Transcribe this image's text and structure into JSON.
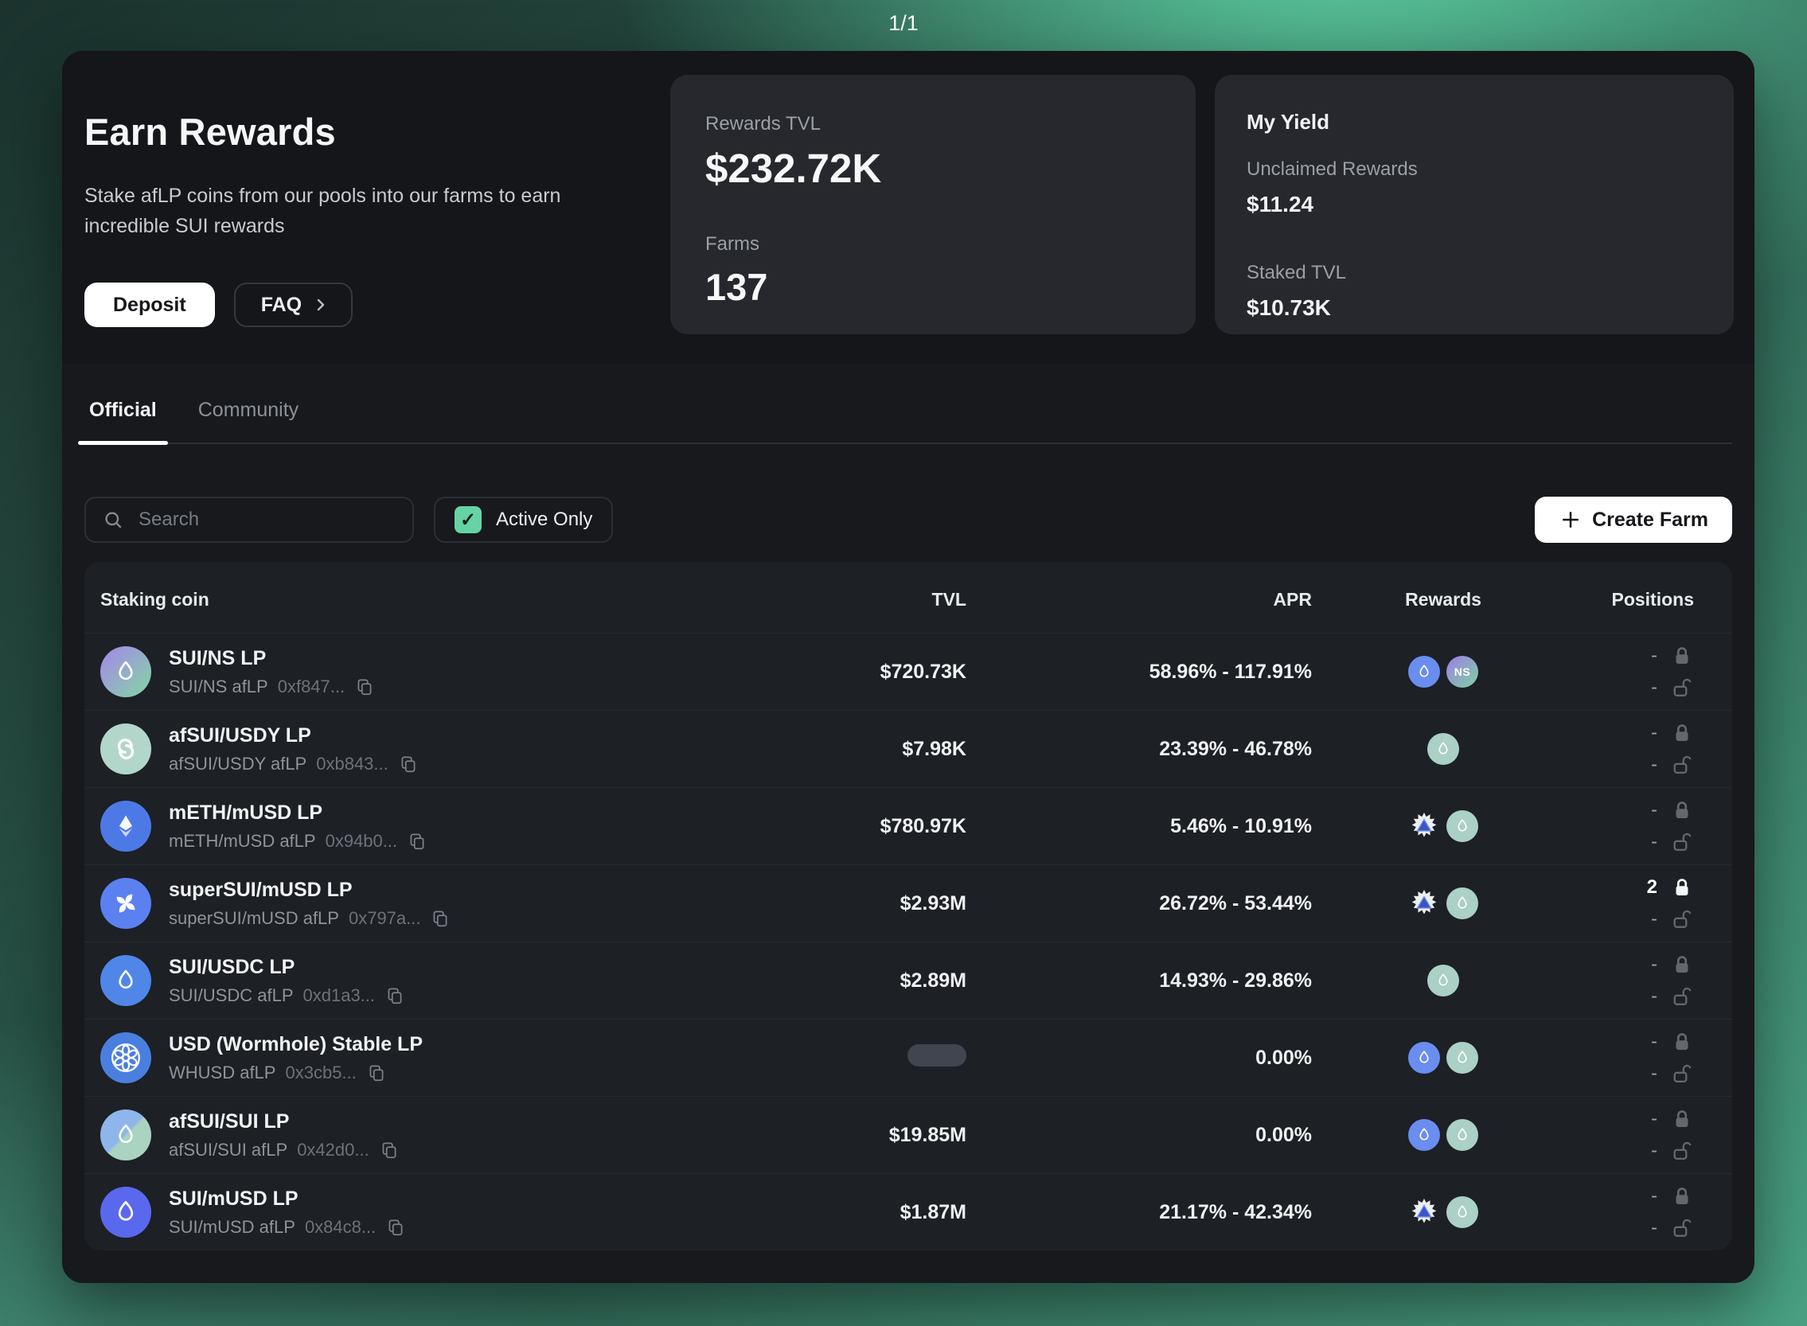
{
  "page": {
    "indicator": "1/1"
  },
  "hero": {
    "title": "Earn Rewards",
    "subtitle": "Stake afLP coins from our pools into our farms to earn incredible SUI rewards",
    "deposit_label": "Deposit",
    "faq_label": "FAQ"
  },
  "stats_card": {
    "rewards_tvl_label": "Rewards TVL",
    "rewards_tvl_value": "$232.72K",
    "farms_label": "Farms",
    "farms_value": "137"
  },
  "yield_card": {
    "title": "My Yield",
    "unclaimed_label": "Unclaimed Rewards",
    "unclaimed_value": "$11.24",
    "staked_label": "Staked TVL",
    "staked_value": "$10.73K"
  },
  "tabs": [
    {
      "label": "Official",
      "active": true
    },
    {
      "label": "Community",
      "active": false
    }
  ],
  "controls": {
    "search_placeholder": "Search",
    "active_only_label": "Active Only",
    "active_only_checked": true,
    "check_glyph": "✓",
    "create_farm_label": "Create Farm"
  },
  "table": {
    "headers": [
      "Staking coin",
      "TVL",
      "APR",
      "Rewards",
      "Positions"
    ],
    "rows": [
      {
        "name": "SUI/NS LP",
        "pair": "SUI/NS afLP",
        "address": "0xf847...",
        "icon": "sui-ns",
        "tvl": "$720.73K",
        "tvl_skeleton": false,
        "apr": "58.96% - 117.91%",
        "rewards": [
          "sui",
          "ns"
        ],
        "locked": "-",
        "unlocked": "-",
        "locked_highlight": false
      },
      {
        "name": "afSUI/USDY LP",
        "pair": "afSUI/USDY afLP",
        "address": "0xb843...",
        "icon": "afsui",
        "tvl": "$7.98K",
        "tvl_skeleton": false,
        "apr": "23.39% - 46.78%",
        "rewards": [
          "afsui"
        ],
        "locked": "-",
        "unlocked": "-",
        "locked_highlight": false
      },
      {
        "name": "mETH/mUSD LP",
        "pair": "mETH/mUSD afLP",
        "address": "0x94b0...",
        "icon": "meth",
        "tvl": "$780.97K",
        "tvl_skeleton": false,
        "apr": "5.46% - 10.91%",
        "rewards": [
          "mpoints",
          "afsui"
        ],
        "locked": "-",
        "unlocked": "-",
        "locked_highlight": false
      },
      {
        "name": "superSUI/mUSD LP",
        "pair": "superSUI/mUSD afLP",
        "address": "0x797a...",
        "icon": "supersui",
        "tvl": "$2.93M",
        "tvl_skeleton": false,
        "apr": "26.72% - 53.44%",
        "rewards": [
          "mpoints",
          "afsui"
        ],
        "locked": "2",
        "unlocked": "-",
        "locked_highlight": true
      },
      {
        "name": "SUI/USDC LP",
        "pair": "SUI/USDC afLP",
        "address": "0xd1a3...",
        "icon": "usdc-sui",
        "tvl": "$2.89M",
        "tvl_skeleton": false,
        "apr": "14.93% - 29.86%",
        "rewards": [
          "afsui"
        ],
        "locked": "-",
        "unlocked": "-",
        "locked_highlight": false
      },
      {
        "name": "USD (Wormhole) Stable LP",
        "pair": "WHUSD afLP",
        "address": "0x3cb5...",
        "icon": "whusd",
        "tvl": "",
        "tvl_skeleton": true,
        "apr": "0.00%",
        "rewards": [
          "sui",
          "afsui"
        ],
        "locked": "-",
        "unlocked": "-",
        "locked_highlight": false
      },
      {
        "name": "afSUI/SUI LP",
        "pair": "afSUI/SUI afLP",
        "address": "0x42d0...",
        "icon": "afsui-sui",
        "tvl": "$19.85M",
        "tvl_skeleton": false,
        "apr": "0.00%",
        "rewards": [
          "sui",
          "afsui"
        ],
        "locked": "-",
        "unlocked": "-",
        "locked_highlight": false
      },
      {
        "name": "SUI/mUSD LP",
        "pair": "SUI/mUSD afLP",
        "address": "0x84c8...",
        "icon": "sui-musd",
        "tvl": "$1.87M",
        "tvl_skeleton": false,
        "apr": "21.17% - 42.34%",
        "rewards": [
          "mpoints",
          "afsui"
        ],
        "locked": "-",
        "unlocked": "-",
        "locked_highlight": false
      }
    ]
  },
  "colors": {
    "accent_green": "#66d3a5",
    "panel_dark": "#17191d",
    "card_dark": "#26282d"
  }
}
